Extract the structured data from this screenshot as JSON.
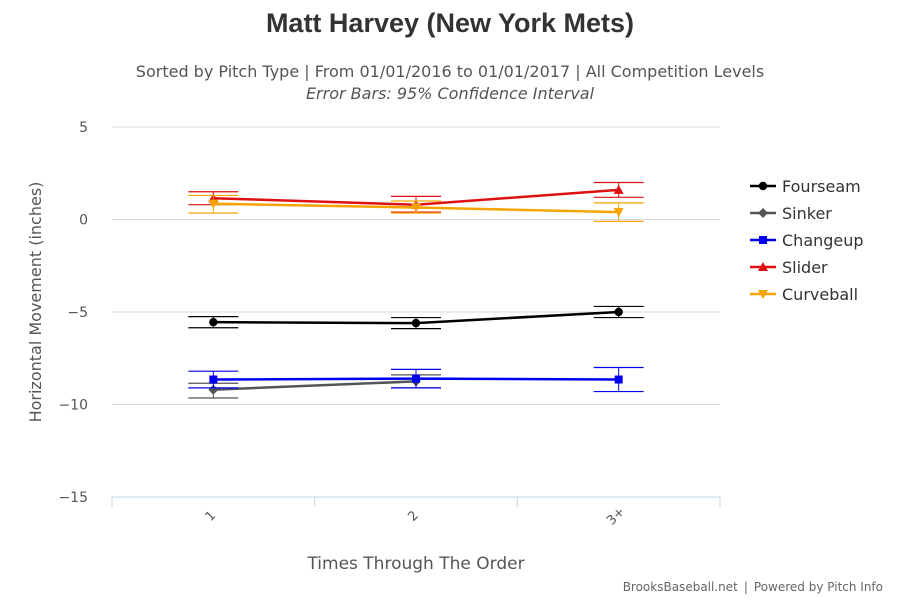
{
  "chart_data": {
    "type": "line",
    "title": "Matt Harvey (New York Mets)",
    "subtitle": "Sorted by Pitch Type | From 01/01/2016 to 01/01/2017 | All Competition Levels",
    "subtitle2": "Error Bars: 95% Confidence Interval",
    "xlabel": "Times Through The Order",
    "ylabel": "Horizontal Movement (inches)",
    "categories": [
      "1",
      "2",
      "3+"
    ],
    "ylim": [
      -15,
      5
    ],
    "yticks": [
      5,
      0,
      -5,
      -10,
      -15
    ],
    "grid": true,
    "legend_position": "right",
    "series": [
      {
        "name": "Fourseam",
        "color": "#000000",
        "marker": "circle",
        "values": [
          -5.55,
          -5.6,
          -5.0
        ],
        "lower": [
          -5.85,
          -5.9,
          -5.3
        ],
        "upper": [
          -5.25,
          -5.3,
          -4.7
        ]
      },
      {
        "name": "Sinker",
        "color": "#555555",
        "marker": "diamond",
        "values": [
          -9.2,
          -8.75,
          null
        ],
        "lower": [
          -9.65,
          -9.1,
          null
        ],
        "upper": [
          -8.85,
          -8.4,
          null
        ]
      },
      {
        "name": "Changeup",
        "color": "#0000ee",
        "marker": "square",
        "values": [
          -8.65,
          -8.6,
          -8.65
        ],
        "lower": [
          -9.1,
          -9.1,
          -9.3
        ],
        "upper": [
          -8.2,
          -8.1,
          -8.0
        ]
      },
      {
        "name": "Slider",
        "color": "#dd1111",
        "marker": "triangle",
        "values": [
          1.15,
          0.8,
          1.6
        ],
        "lower": [
          0.8,
          0.4,
          1.2
        ],
        "upper": [
          1.5,
          1.25,
          2.0
        ]
      },
      {
        "name": "Curveball",
        "color": "#f5a300",
        "marker": "triangle-down",
        "values": [
          0.85,
          0.65,
          0.4
        ],
        "lower": [
          0.35,
          0.35,
          -0.1
        ],
        "upper": [
          1.3,
          1.0,
          0.9
        ]
      }
    ]
  },
  "credit": {
    "source": "BrooksBaseball.net",
    "separator": "|",
    "powered": "Powered by Pitch Info"
  }
}
